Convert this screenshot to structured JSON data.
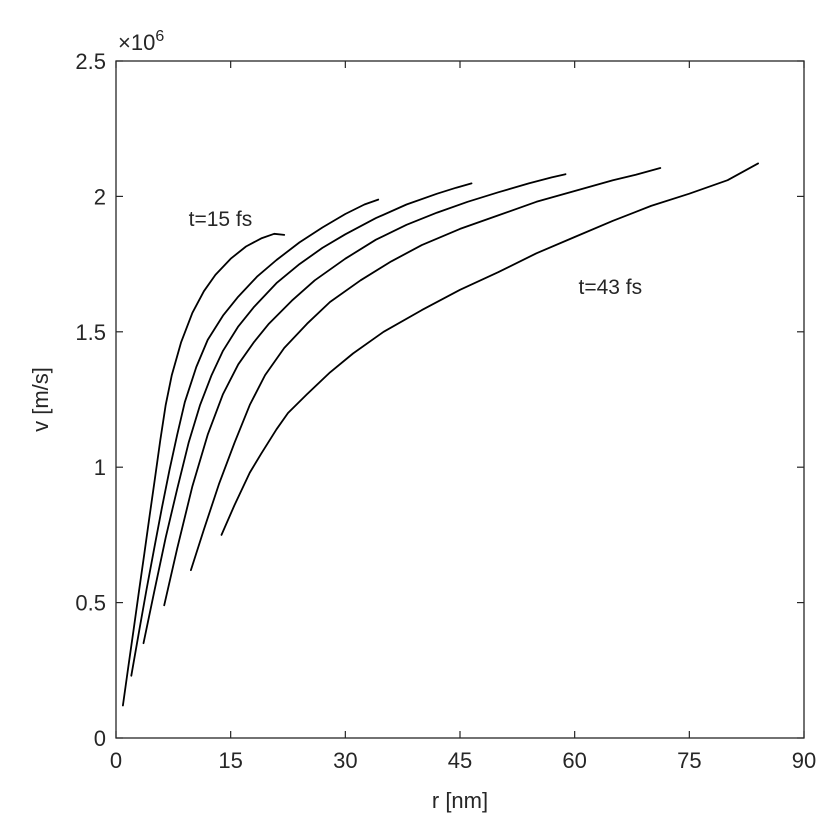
{
  "chart_data": {
    "type": "line",
    "title": "",
    "xlabel": "r [nm]",
    "ylabel": "v [m/s]",
    "xlim": [
      0,
      90
    ],
    "ylim": [
      0,
      2500000
    ],
    "xticks": [
      0,
      15,
      30,
      45,
      60,
      75,
      90
    ],
    "yticks": [
      0,
      500000,
      1000000,
      1500000,
      2000000,
      2500000
    ],
    "xtick_labels": [
      "0",
      "15",
      "30",
      "45",
      "60",
      "75",
      "90"
    ],
    "ytick_labels": [
      "0",
      "0.5",
      "1",
      "1.5",
      "2",
      "2.5"
    ],
    "y_multiplier_base": "×10",
    "y_multiplier_exponent": "6",
    "grid": false,
    "box": true,
    "annotations": [
      {
        "text": "t=15 fs",
        "x": 9.5,
        "y": 1890000
      },
      {
        "text": "t=43 fs",
        "x": 60.5,
        "y": 1640000
      }
    ],
    "series": [
      {
        "x": [
          0.9,
          1.6,
          2.3,
          3.0,
          3.7,
          4.4,
          5.1,
          5.8,
          6.5,
          7.3,
          8.5,
          10.0,
          11.5,
          13.0,
          15.0,
          17.0,
          19.0,
          20.7,
          22.0
        ],
        "y": [
          120000,
          260000,
          400000,
          540000,
          680000,
          820000,
          960000,
          1100000,
          1230000,
          1340000,
          1460000,
          1570000,
          1650000,
          1710000,
          1770000,
          1815000,
          1845000,
          1862000,
          1858000
        ]
      },
      {
        "x": [
          2.0,
          3.0,
          4.0,
          5.0,
          6.0,
          7.0,
          8.0,
          9.0,
          10.5,
          12.0,
          14.0,
          16.0,
          18.5,
          21.0,
          24.0,
          27.0,
          30.0,
          32.5,
          34.3
        ],
        "y": [
          230000,
          390000,
          550000,
          700000,
          850000,
          990000,
          1120000,
          1240000,
          1370000,
          1470000,
          1560000,
          1630000,
          1705000,
          1765000,
          1830000,
          1885000,
          1935000,
          1970000,
          1988000
        ]
      },
      {
        "x": [
          3.6,
          5.0,
          6.5,
          8.0,
          9.5,
          11.0,
          12.5,
          14.0,
          16.0,
          18.0,
          21.0,
          24.0,
          27.0,
          30.0,
          34.0,
          38.0,
          42.0,
          44.5,
          46.5
        ],
        "y": [
          350000,
          540000,
          740000,
          920000,
          1090000,
          1230000,
          1340000,
          1430000,
          1520000,
          1590000,
          1680000,
          1750000,
          1810000,
          1860000,
          1920000,
          1970000,
          2010000,
          2032000,
          2048000
        ]
      },
      {
        "x": [
          6.3,
          8.0,
          10.0,
          12.0,
          14.0,
          16.0,
          18.0,
          20.0,
          23.0,
          26.0,
          30.0,
          34.0,
          38.0,
          42.0,
          46.0,
          50.0,
          54.0,
          57.0,
          58.8
        ],
        "y": [
          490000,
          700000,
          930000,
          1120000,
          1270000,
          1380000,
          1460000,
          1530000,
          1615000,
          1690000,
          1770000,
          1840000,
          1895000,
          1940000,
          1980000,
          2015000,
          2048000,
          2070000,
          2082000
        ]
      },
      {
        "x": [
          9.8,
          11.5,
          13.5,
          15.5,
          17.5,
          19.5,
          22.0,
          25.0,
          28.0,
          32.0,
          36.0,
          40.0,
          45.0,
          50.0,
          55.0,
          60.0,
          65.0,
          68.0,
          71.2
        ],
        "y": [
          620000,
          770000,
          940000,
          1090000,
          1230000,
          1340000,
          1440000,
          1530000,
          1610000,
          1690000,
          1760000,
          1820000,
          1880000,
          1930000,
          1980000,
          2020000,
          2060000,
          2080000,
          2105000
        ]
      },
      {
        "x": [
          13.8,
          15.5,
          17.5,
          19.0,
          21.0,
          22.5,
          25.0,
          28.0,
          31.0,
          35.0,
          40.0,
          45.0,
          50.0,
          55.0,
          60.0,
          65.0,
          70.0,
          75.0,
          80.0,
          84.0
        ],
        "y": [
          750000,
          860000,
          980000,
          1050000,
          1140000,
          1200000,
          1270000,
          1350000,
          1420000,
          1500000,
          1580000,
          1655000,
          1720000,
          1790000,
          1850000,
          1910000,
          1965000,
          2010000,
          2060000,
          2122000
        ]
      }
    ]
  }
}
